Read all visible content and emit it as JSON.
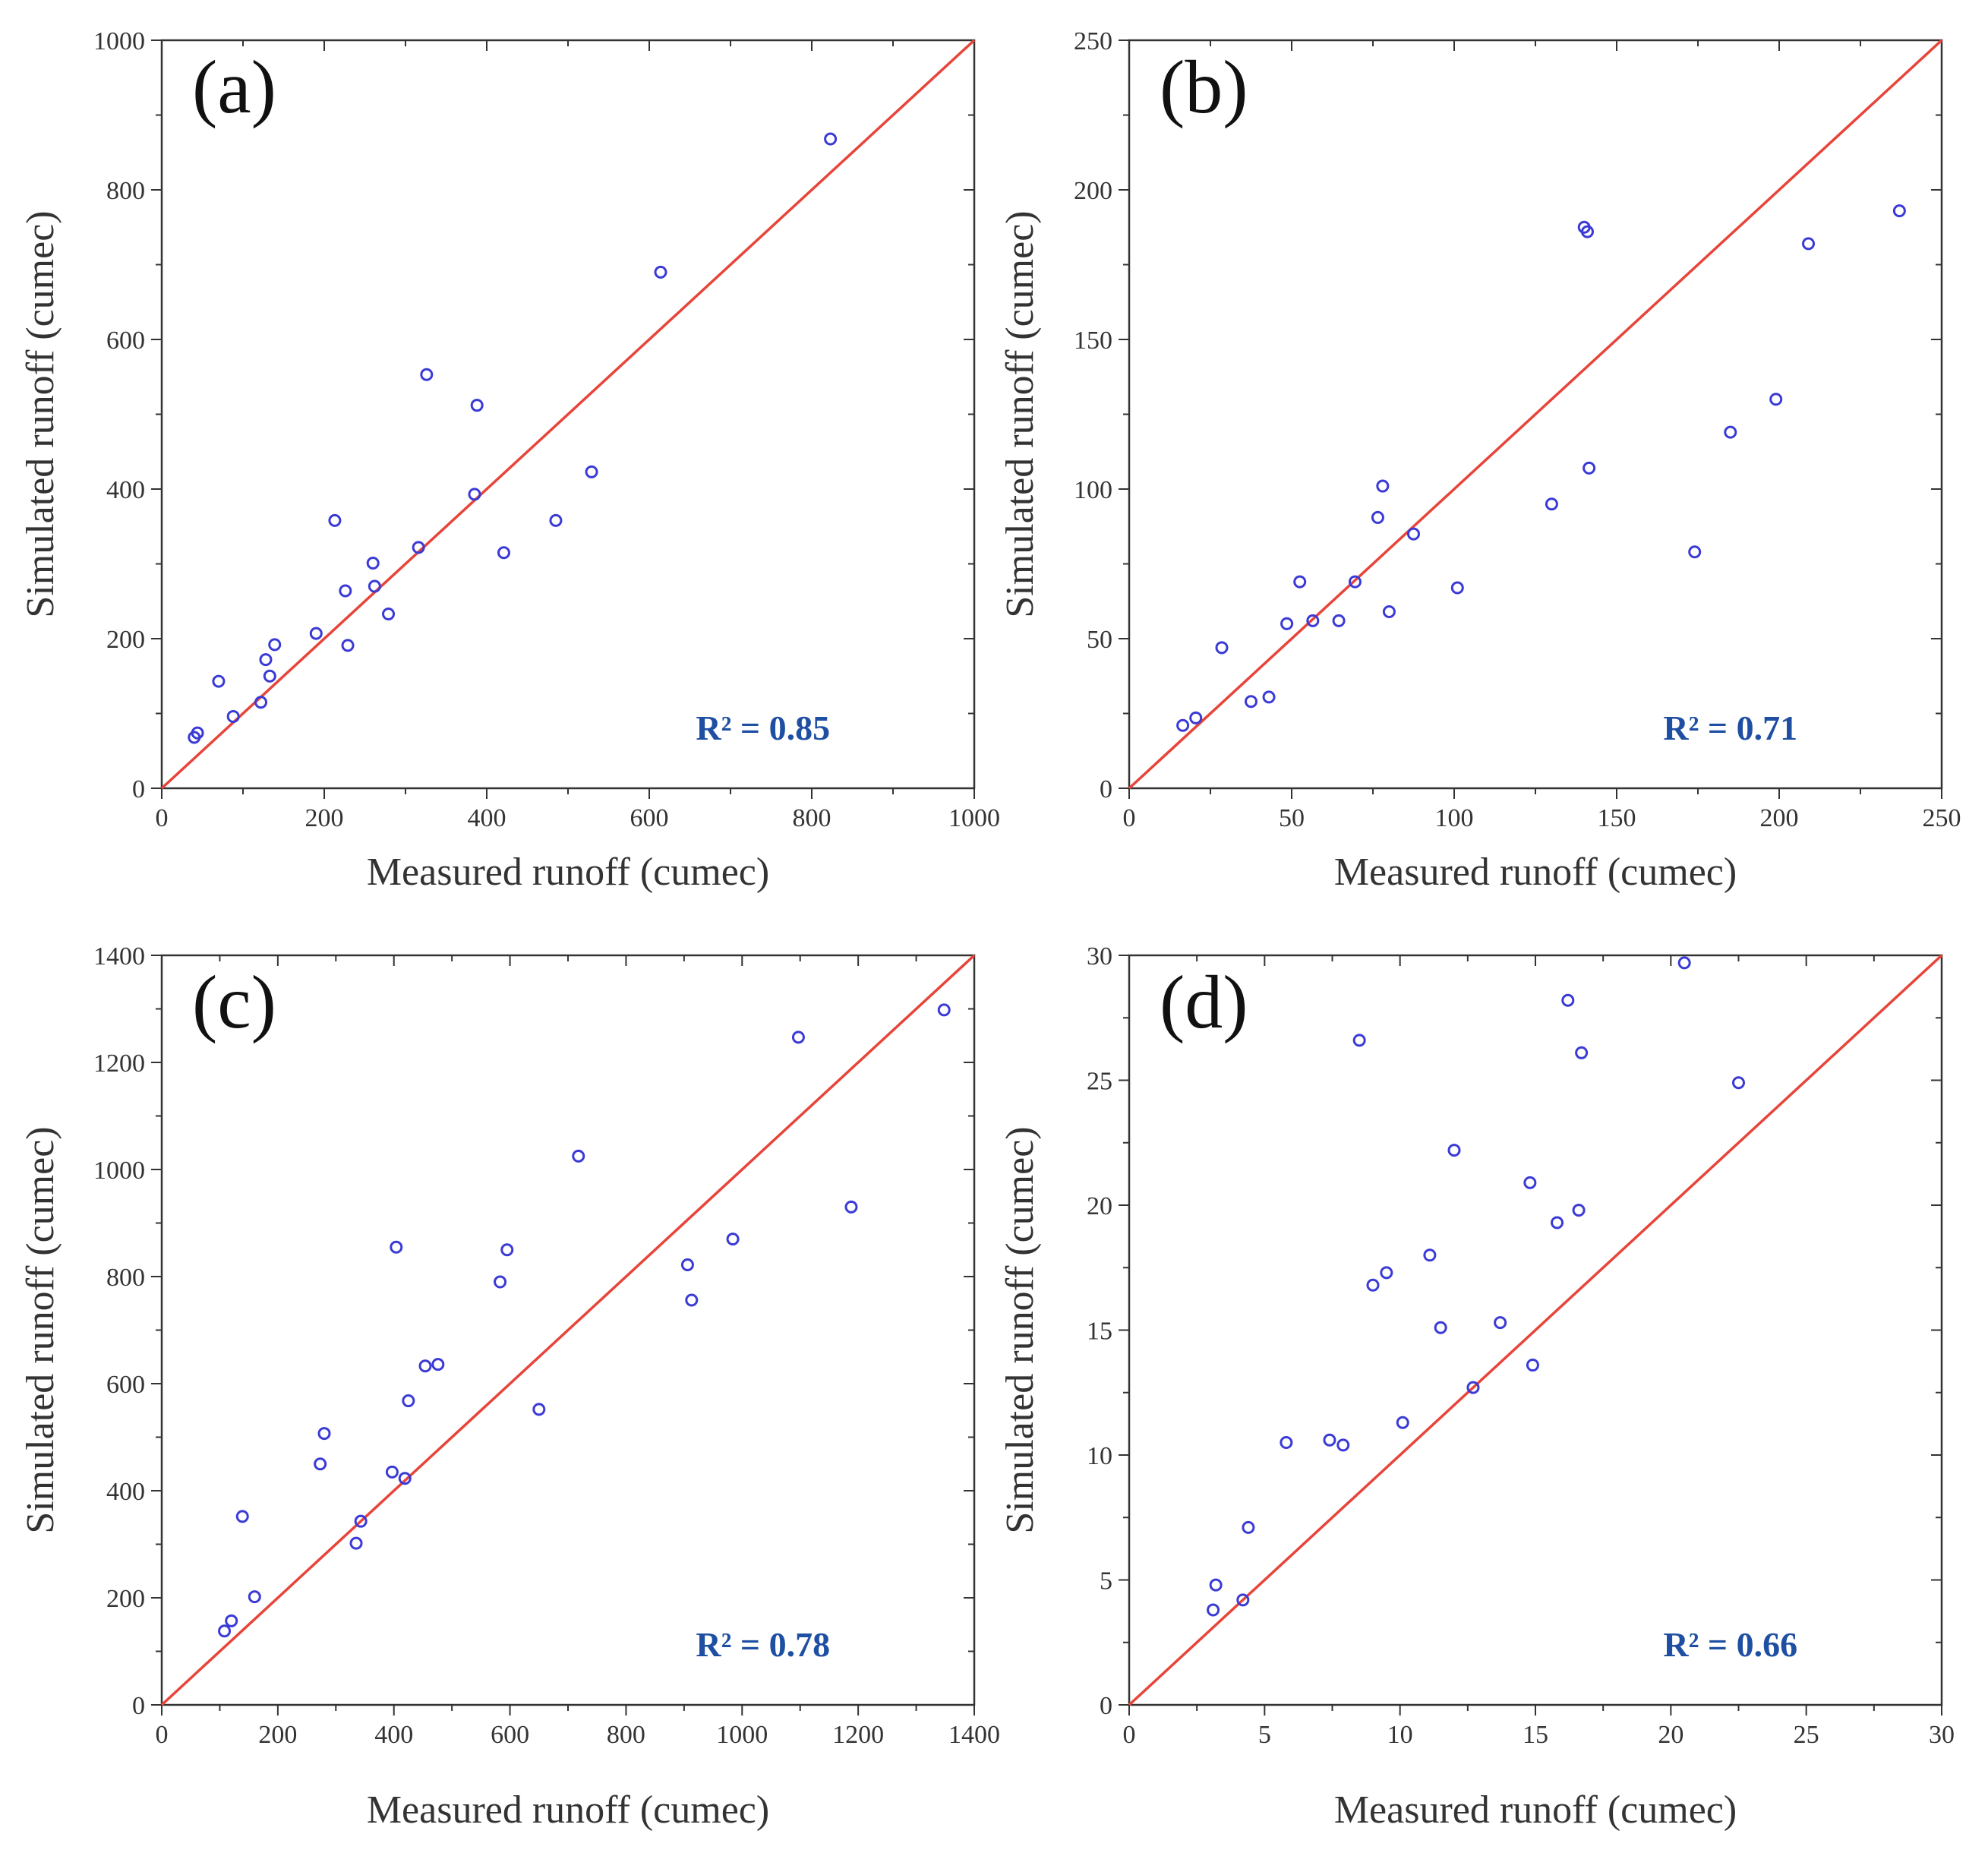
{
  "colors": {
    "point": "#3a3ad6",
    "line": "#e8443a",
    "axis": "#333333",
    "r2": "#1f4fa3"
  },
  "chart_data": [
    {
      "type": "scatter",
      "panel_label": "(a)",
      "xlabel": "Measured runoff (cumec)",
      "ylabel": "Simulated runoff (cumec)",
      "xlim": [
        0,
        1000
      ],
      "ylim": [
        0,
        1000
      ],
      "xticks": [
        0,
        200,
        400,
        600,
        800,
        1000
      ],
      "yticks": [
        0,
        200,
        400,
        600,
        800,
        1000
      ],
      "annotation": "R² = 0.85",
      "reference_line": "1:1",
      "points": [
        [
          40,
          68
        ],
        [
          44,
          74
        ],
        [
          70,
          143
        ],
        [
          88,
          96
        ],
        [
          122,
          115
        ],
        [
          128,
          172
        ],
        [
          133,
          150
        ],
        [
          139,
          192
        ],
        [
          190,
          207
        ],
        [
          213,
          358
        ],
        [
          226,
          264
        ],
        [
          229,
          191
        ],
        [
          260,
          301
        ],
        [
          262,
          270
        ],
        [
          279,
          233
        ],
        [
          316,
          322
        ],
        [
          326,
          553
        ],
        [
          385,
          393
        ],
        [
          388,
          512
        ],
        [
          421,
          315
        ],
        [
          485,
          358
        ],
        [
          529,
          423
        ],
        [
          614,
          690
        ],
        [
          823,
          868
        ]
      ]
    },
    {
      "type": "scatter",
      "panel_label": "(b)",
      "xlabel": "Measured runoff (cumec)",
      "ylabel": "Simulated runoff (cumec)",
      "xlim": [
        0,
        250
      ],
      "ylim": [
        0,
        250
      ],
      "xticks": [
        0,
        50,
        100,
        150,
        200,
        250
      ],
      "yticks": [
        0,
        50,
        100,
        150,
        200,
        250
      ],
      "annotation": "R² = 0.71",
      "reference_line": "1:1",
      "points": [
        [
          16.5,
          21
        ],
        [
          20.5,
          23.5
        ],
        [
          28.5,
          47
        ],
        [
          37.5,
          29
        ],
        [
          43,
          30.5
        ],
        [
          48.5,
          55
        ],
        [
          52.5,
          69
        ],
        [
          56.5,
          56
        ],
        [
          64.5,
          56
        ],
        [
          69.5,
          69
        ],
        [
          76.5,
          90.5
        ],
        [
          78,
          101
        ],
        [
          80,
          59
        ],
        [
          87.5,
          85
        ],
        [
          101,
          67
        ],
        [
          130,
          95
        ],
        [
          140,
          187.5
        ],
        [
          141,
          186
        ],
        [
          141.5,
          107
        ],
        [
          174,
          79
        ],
        [
          185,
          119
        ],
        [
          199,
          130
        ],
        [
          209,
          182
        ],
        [
          237,
          193
        ]
      ]
    },
    {
      "type": "scatter",
      "panel_label": "(c)",
      "xlabel": "Measured runoff (cumec)",
      "ylabel": "Simulated runoff (cumec)",
      "xlim": [
        0,
        1400
      ],
      "ylim": [
        0,
        1400
      ],
      "xticks": [
        0,
        200,
        400,
        600,
        800,
        1000,
        1200,
        1400
      ],
      "yticks": [
        0,
        200,
        400,
        600,
        800,
        1000,
        1200,
        1400
      ],
      "annotation": "R² = 0.78",
      "reference_line": "1:1",
      "points": [
        [
          108,
          138
        ],
        [
          120,
          157
        ],
        [
          139,
          352
        ],
        [
          160,
          202
        ],
        [
          273,
          450
        ],
        [
          280,
          507
        ],
        [
          335,
          302
        ],
        [
          343,
          343
        ],
        [
          397,
          435
        ],
        [
          404,
          855
        ],
        [
          419,
          423
        ],
        [
          425,
          568
        ],
        [
          454,
          633
        ],
        [
          476,
          636
        ],
        [
          583,
          790
        ],
        [
          595,
          850
        ],
        [
          650,
          552
        ],
        [
          718,
          1025
        ],
        [
          906,
          822
        ],
        [
          913,
          756
        ],
        [
          984,
          870
        ],
        [
          1097,
          1247
        ],
        [
          1188,
          930
        ],
        [
          1348,
          1298
        ]
      ]
    },
    {
      "type": "scatter",
      "panel_label": "(d)",
      "xlabel": "Measured runoff (cumec)",
      "ylabel": "Simulated runoff (cumec)",
      "xlim": [
        0,
        30
      ],
      "ylim": [
        0,
        30
      ],
      "xticks": [
        0,
        5,
        10,
        15,
        20,
        25,
        30
      ],
      "yticks": [
        0,
        5,
        10,
        15,
        20,
        25,
        30
      ],
      "annotation": "R² = 0.66",
      "reference_line": "1:1",
      "points": [
        [
          3.1,
          3.8
        ],
        [
          3.2,
          4.8
        ],
        [
          4.2,
          4.2
        ],
        [
          4.4,
          7.1
        ],
        [
          5.8,
          10.5
        ],
        [
          7.4,
          10.6
        ],
        [
          7.9,
          10.4
        ],
        [
          8.5,
          26.6
        ],
        [
          9.0,
          16.8
        ],
        [
          9.5,
          17.3
        ],
        [
          10.1,
          11.3
        ],
        [
          11.1,
          18.0
        ],
        [
          11.5,
          15.1
        ],
        [
          12.0,
          22.2
        ],
        [
          12.7,
          12.7
        ],
        [
          13.7,
          15.3
        ],
        [
          14.8,
          20.9
        ],
        [
          14.9,
          13.6
        ],
        [
          15.8,
          19.3
        ],
        [
          16.2,
          28.2
        ],
        [
          16.6,
          19.8
        ],
        [
          16.7,
          26.1
        ],
        [
          20.5,
          29.7
        ],
        [
          22.5,
          24.9
        ]
      ]
    }
  ]
}
